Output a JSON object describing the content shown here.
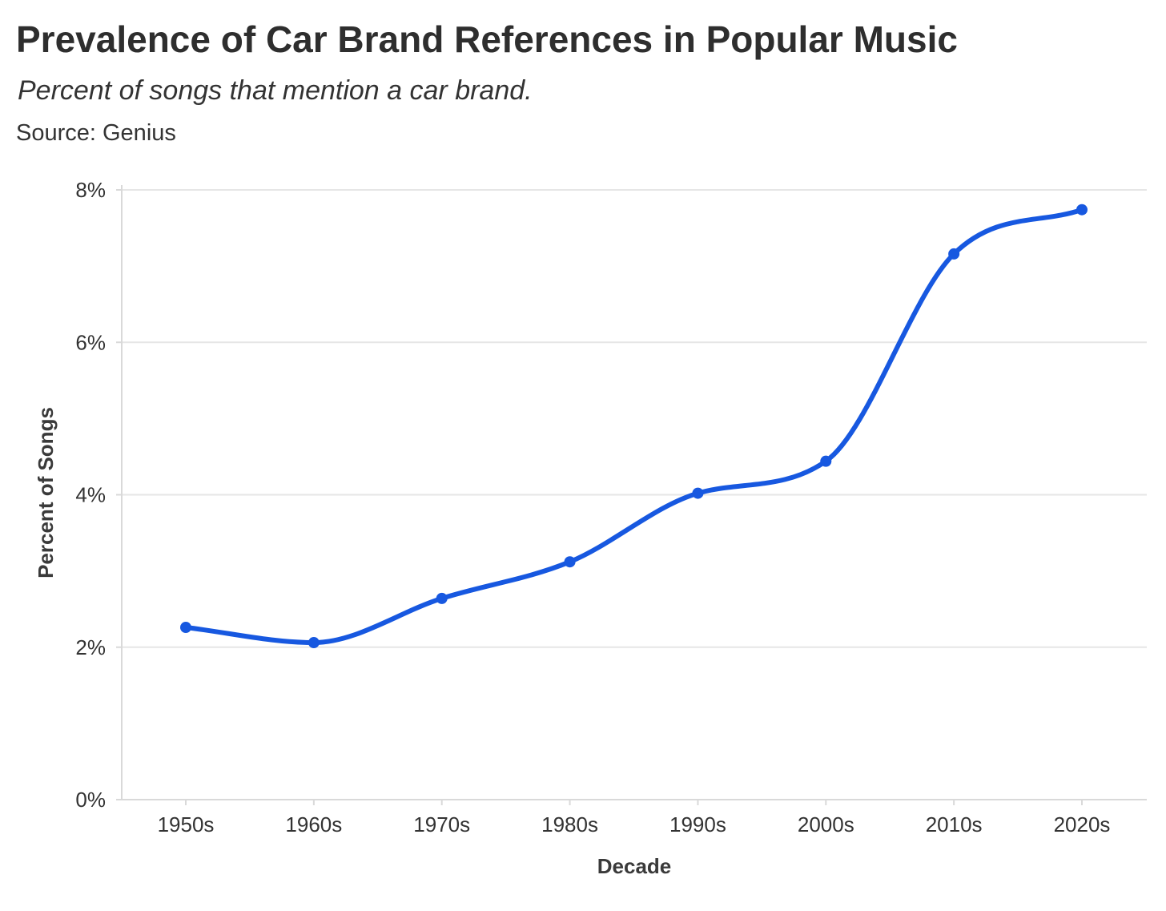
{
  "chart_data": {
    "type": "line",
    "title": "Prevalence of Car Brand References in Popular Music",
    "subtitle": "Percent of songs that mention a car brand.",
    "source": "Source: Genius",
    "xlabel": "Decade",
    "ylabel": "Percent of Songs",
    "categories": [
      "1950s",
      "1960s",
      "1970s",
      "1980s",
      "1990s",
      "2000s",
      "2010s",
      "2020s"
    ],
    "series": [
      {
        "values": [
          2.26,
          2.06,
          2.64,
          3.12,
          4.02,
          4.44,
          7.16,
          7.74
        ]
      }
    ],
    "ylim": [
      0,
      8
    ],
    "yticks": [
      0,
      2,
      4,
      6,
      8
    ],
    "ytick_labels": [
      "0%",
      "2%",
      "4%",
      "6%",
      "8%"
    ],
    "grid": "horizontal",
    "smooth": true,
    "line_color": "#1758E0",
    "grid_color": "#E6E6E6",
    "axis_color": "#D9D9D9"
  }
}
